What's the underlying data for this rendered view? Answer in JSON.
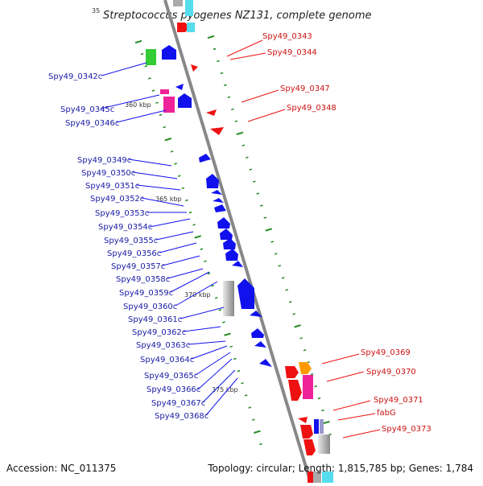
{
  "title": "Streptococcus pyogenes NZ131, complete genome",
  "corner_label": "35",
  "footer": {
    "accession": "Accession: NC_011375",
    "summary": "Topology: circular; Length: 1,815,785 bp; Genes: 1,784"
  },
  "scale_labels": [
    "360 kbp",
    "365 kbp",
    "370 kbp",
    "375 kbp"
  ],
  "left_labels": [
    "Spy49_0342c",
    "Spy49_0345c",
    "Spy49_0346c",
    "Spy49_0349c",
    "Spy49_0350c",
    "Spy49_0351c",
    "Spy49_0352c",
    "Spy49_0353c",
    "Spy49_0354c",
    "Spy49_0355c",
    "Spy49_0356c",
    "Spy49_0357c",
    "Spy49_0358c",
    "Spy49_0359c",
    "Spy49_0360c",
    "Spy49_0361c",
    "Spy49_0362c",
    "Spy49_0363c",
    "Spy49_0364c",
    "Spy49_0365c",
    "Spy49_0366c",
    "Spy49_0367c",
    "Spy49_0368c"
  ],
  "right_labels": [
    "Spy49_0343",
    "Spy49_0344",
    "Spy49_0347",
    "Spy49_0348",
    "Spy49_0369",
    "Spy49_0370",
    "Spy49_0371",
    "fabG",
    "Spy49_0373"
  ],
  "colors": {
    "forward_cds": "#ee1111",
    "reverse_cds": "#1111ee",
    "backbone": "#888888",
    "tick": "#228b22",
    "green_feature": "#33cc33",
    "magenta_feature": "#ee2299",
    "orange_feature": "#ff9900",
    "gray_feature": "#aaaaaa",
    "cyan_feature": "#55ddee"
  }
}
